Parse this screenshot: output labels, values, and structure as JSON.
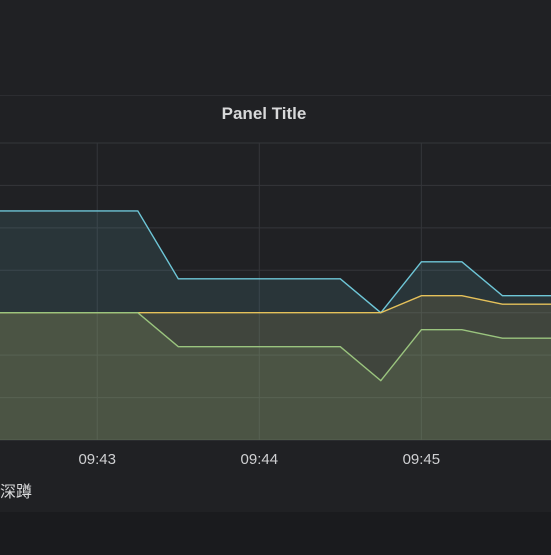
{
  "panel": {
    "title": "Panel Title"
  },
  "legend": {
    "label": "深蹲"
  },
  "chart_data": {
    "type": "area",
    "x_ticks": [
      "09:43",
      "09:44",
      "09:45"
    ],
    "x_range": [
      "09:42.4",
      "09:45.8"
    ],
    "y_range": [
      0,
      7
    ],
    "grid": true,
    "x": [
      "09:42.4",
      "09:43.25",
      "09:43.5",
      "09:44.5",
      "09:44.75",
      "09:45",
      "09:45.25",
      "09:45.5",
      "09:45.8"
    ],
    "series": [
      {
        "color": "#6ec6d7",
        "values": [
          5.4,
          5.4,
          3.8,
          3.8,
          3.0,
          4.2,
          4.2,
          3.4,
          3.4
        ]
      },
      {
        "color": "#e5c15a",
        "values": [
          3.0,
          3.0,
          3.0,
          3.0,
          3.0,
          3.4,
          3.4,
          3.2,
          3.2
        ]
      },
      {
        "color": "#9ac47e",
        "values": [
          3.0,
          3.0,
          2.2,
          2.2,
          1.4,
          2.6,
          2.6,
          2.4,
          2.4
        ]
      }
    ]
  }
}
